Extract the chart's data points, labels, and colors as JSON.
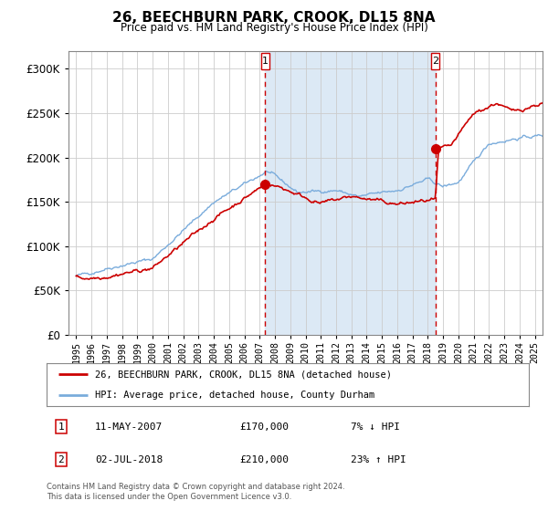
{
  "title": "26, BEECHBURN PARK, CROOK, DL15 8NA",
  "subtitle": "Price paid vs. HM Land Registry's House Price Index (HPI)",
  "legend_line1": "26, BEECHBURN PARK, CROOK, DL15 8NA (detached house)",
  "legend_line2": "HPI: Average price, detached house, County Durham",
  "sale1_label": "1",
  "sale1_date": "11-MAY-2007",
  "sale1_price": "£170,000",
  "sale1_hpi": "7% ↓ HPI",
  "sale2_label": "2",
  "sale2_date": "02-JUL-2018",
  "sale2_price": "£210,000",
  "sale2_hpi": "23% ↑ HPI",
  "footnote": "Contains HM Land Registry data © Crown copyright and database right 2024.\nThis data is licensed under the Open Government Licence v3.0.",
  "red_color": "#cc0000",
  "blue_color": "#7aacdc",
  "bg_span_color": "#dce9f5",
  "plot_bg": "#ffffff",
  "sale1_x": 2007.36,
  "sale1_y": 170000,
  "sale2_x": 2018.5,
  "sale2_y": 210000,
  "ylim": [
    0,
    320000
  ],
  "xlim_start": 1994.5,
  "xlim_end": 2025.5
}
